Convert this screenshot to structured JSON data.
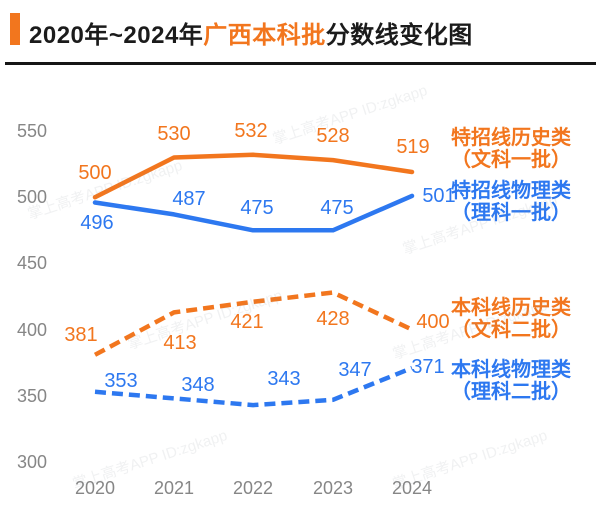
{
  "header": {
    "title_prefix": "2020年~2024年",
    "title_highlight": "广西本科批",
    "title_suffix": "分数线变化图"
  },
  "colors": {
    "accent_orange": "#f2761e",
    "series_blue": "#2d78f0",
    "axis_gray": "#868686",
    "title_black": "#1b1b1b",
    "divider_black": "#161616"
  },
  "watermark": {
    "line1": "掌上高考APP",
    "line2": "ID:zgkapp"
  },
  "chart_data": {
    "type": "line",
    "x": [
      2020,
      2021,
      2022,
      2023,
      2024
    ],
    "xlabel": "",
    "ylabel": "",
    "ylim": [
      300,
      550
    ],
    "yticks": [
      550,
      500,
      450,
      400,
      350,
      300
    ],
    "grid": false,
    "legend_position": "right",
    "series": [
      {
        "name": "特招线历史类（文科一批）",
        "legend_line1": "特招线历史类",
        "legend_line2": "（文科一批）",
        "color": "#f2761e",
        "style": "solid",
        "values": [
          500,
          530,
          532,
          528,
          519
        ]
      },
      {
        "name": "特招线物理类（理科一批）",
        "legend_line1": "特招线物理类",
        "legend_line2": "（理科一批）",
        "color": "#2d78f0",
        "style": "solid",
        "values": [
          496,
          487,
          475,
          475,
          501
        ]
      },
      {
        "name": "本科线历史类（文科二批）",
        "legend_line1": "本科线历史类",
        "legend_line2": "（文科二批）",
        "color": "#f2761e",
        "style": "dashed",
        "values": [
          381,
          413,
          421,
          428,
          400
        ]
      },
      {
        "name": "本科线物理类（理科二批）",
        "legend_line1": "本科线物理类",
        "legend_line2": "（理科二批）",
        "color": "#2d78f0",
        "style": "dashed",
        "values": [
          353,
          348,
          343,
          347,
          371
        ]
      }
    ]
  }
}
